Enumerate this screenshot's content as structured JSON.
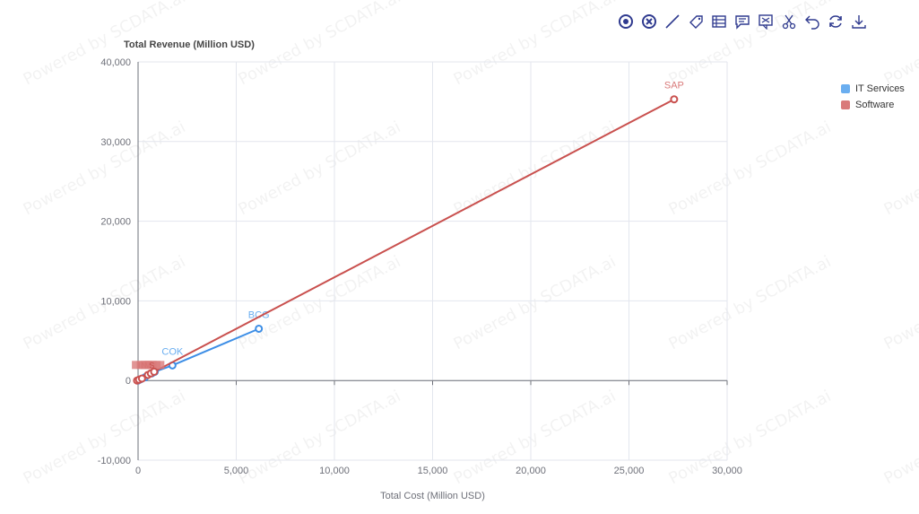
{
  "toolbox": {
    "icons": [
      "select-all-icon",
      "clear-selection-icon",
      "line-tool-icon",
      "tag-icon",
      "data-view-icon",
      "comment-icon",
      "screenshot-icon",
      "cut-icon",
      "undo-icon",
      "refresh-icon",
      "download-icon"
    ],
    "color": "#2f3a8f"
  },
  "watermark": "Powered by SCDATA.ai",
  "chart_data": {
    "type": "scatter",
    "title": "",
    "ylabel": "Total Revenue (Million USD)",
    "xlabel": "Total Cost (Million USD)",
    "xlim": [
      0,
      30000
    ],
    "ylim": [
      -10000,
      40000
    ],
    "xticks": [
      "0",
      "5,000",
      "10,000",
      "15,000",
      "20,000",
      "25,000",
      "30,000"
    ],
    "yticks": [
      "-10,000",
      "0",
      "10,000",
      "20,000",
      "30,000",
      "40,000"
    ],
    "grid": true,
    "legend_position": "top-right",
    "series": [
      {
        "name": "IT Services",
        "color": "#6aaef0",
        "line_color": "#3d8ee6",
        "points": [
          {
            "x": 0,
            "y": 0,
            "label": ""
          },
          {
            "x": 120,
            "y": 150,
            "label": ""
          },
          {
            "x": 350,
            "y": 400,
            "label": ""
          },
          {
            "x": 700,
            "y": 900,
            "label": ""
          },
          {
            "x": 850,
            "y": 1100,
            "label": ""
          },
          {
            "x": 1750,
            "y": 1900,
            "label": "COK"
          },
          {
            "x": 6150,
            "y": 6500,
            "label": "BCG"
          }
        ]
      },
      {
        "name": "Software",
        "color": "#d97a7a",
        "line_color": "#c9504e",
        "points": [
          {
            "x": -50,
            "y": 0,
            "label": ""
          },
          {
            "x": 50,
            "y": 100,
            "label": ""
          },
          {
            "x": 200,
            "y": 250,
            "label": ""
          },
          {
            "x": 500,
            "y": 700,
            "label": ""
          },
          {
            "x": 650,
            "y": 900,
            "label": ""
          },
          {
            "x": 820,
            "y": 1100,
            "label": ""
          },
          {
            "x": 27300,
            "y": 35300,
            "label": "SAP"
          }
        ],
        "crowded_labels": [
          {
            "x": 50,
            "y": 1900,
            "label": "I"
          },
          {
            "x": 300,
            "y": 1900,
            "label": "N"
          },
          {
            "x": 500,
            "y": 1900,
            "label": "M"
          },
          {
            "x": 700,
            "y": 1900,
            "label": "S"
          }
        ]
      }
    ]
  }
}
